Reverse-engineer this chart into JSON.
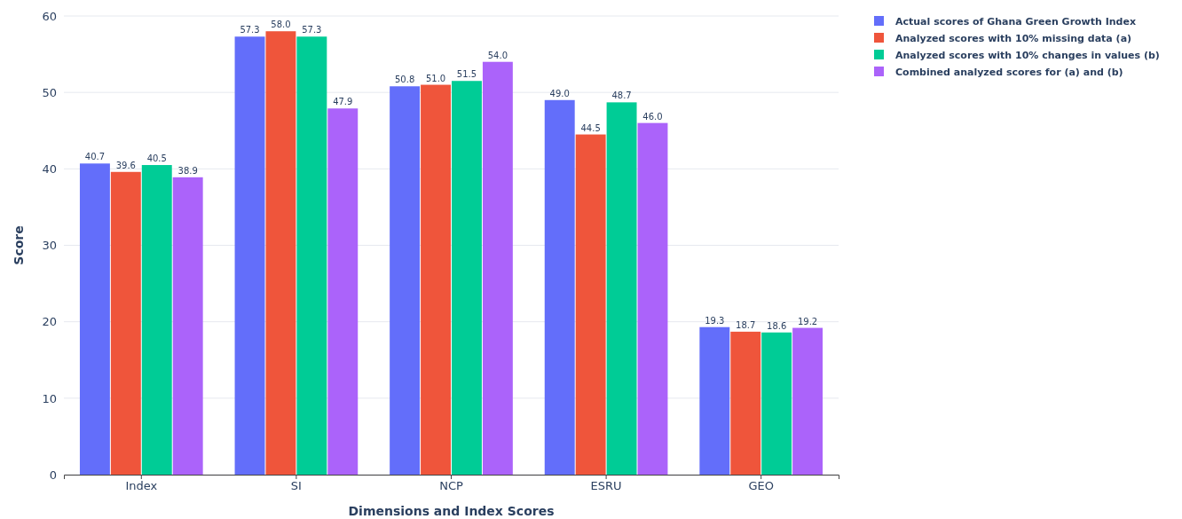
{
  "chart_data": {
    "type": "bar",
    "xlabel": "Dimensions and Index Scores",
    "ylabel": "Score",
    "categories": [
      "Index",
      "SI",
      "NCP",
      "ESRU",
      "GEO"
    ],
    "series": [
      {
        "name": "Actual scores of Ghana Green Growth Index",
        "color": "#636efa",
        "values": [
          40.7,
          57.3,
          50.8,
          49,
          19.3
        ],
        "value_labels": [
          "40.7",
          "57.3",
          "50.8",
          "49.0",
          "19.3"
        ]
      },
      {
        "name": "Analyzed scores with 10% missing data (a)",
        "color": "#ef553b",
        "values": [
          39.6,
          58,
          51,
          44.5,
          18.7
        ],
        "value_labels": [
          "39.6",
          "58.0",
          "51.0",
          "44.5",
          "18.7"
        ]
      },
      {
        "name": "Analyzed scores with 10% changes in values (b)",
        "color": "#00cc96",
        "values": [
          40.5,
          57.3,
          51.5,
          48.7,
          18.6
        ],
        "value_labels": [
          "40.5",
          "57.3",
          "51.5",
          "48.7",
          "18.6"
        ]
      },
      {
        "name": "Combined analyzed scores for (a) and (b)",
        "color": "#ab63fa",
        "values": [
          38.9,
          47.9,
          54,
          46,
          19.2
        ],
        "value_labels": [
          "38.9",
          "47.9",
          "54.0",
          "46.0",
          "19.2"
        ]
      }
    ],
    "ylim": [
      0,
      60
    ],
    "yticks": [
      0,
      10,
      20,
      30,
      40,
      50,
      60
    ],
    "grid": "y",
    "legend": "top right"
  }
}
